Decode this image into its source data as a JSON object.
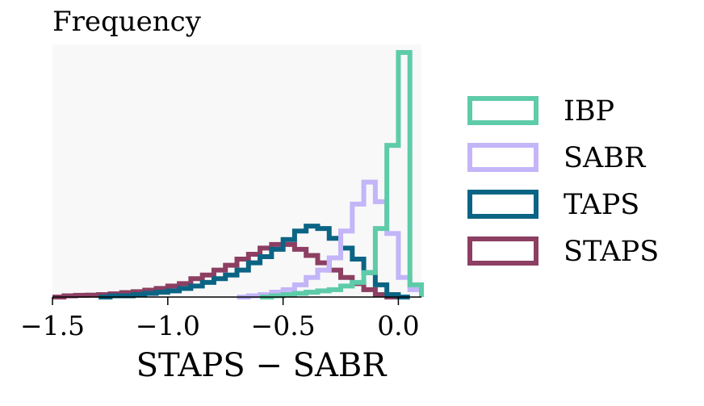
{
  "chart_data": {
    "type": "histogram",
    "ylabel": "Frequency",
    "xlabel": "STAPS − SABR",
    "xlim": [
      -1.5,
      0.1
    ],
    "ylim": [
      0,
      1.0
    ],
    "xticks": [
      "−1.5",
      "−1.0",
      "−0.5",
      "0.0"
    ],
    "xtick_values": [
      -1.5,
      -1.0,
      -0.5,
      0.0
    ],
    "grid": false,
    "legend_position": "right",
    "bin_width": 0.05,
    "series": [
      {
        "name": "IBP",
        "color": "#5ecba9",
        "bins": [
          [
            -0.6,
            0.0
          ],
          [
            -0.55,
            0.005
          ],
          [
            -0.5,
            0.01
          ],
          [
            -0.45,
            0.015
          ],
          [
            -0.4,
            0.02
          ],
          [
            -0.35,
            0.025
          ],
          [
            -0.3,
            0.03
          ],
          [
            -0.25,
            0.045
          ],
          [
            -0.2,
            0.06
          ],
          [
            -0.15,
            0.1
          ],
          [
            -0.1,
            0.28
          ],
          [
            -0.05,
            0.62
          ],
          [
            0.0,
            1.0
          ],
          [
            0.05,
            0.05
          ],
          [
            0.1,
            0.0
          ]
        ]
      },
      {
        "name": "SABR",
        "color": "#c3b5f8",
        "bins": [
          [
            -0.7,
            0.0
          ],
          [
            -0.65,
            0.005
          ],
          [
            -0.6,
            0.01
          ],
          [
            -0.55,
            0.02
          ],
          [
            -0.5,
            0.03
          ],
          [
            -0.45,
            0.05
          ],
          [
            -0.4,
            0.08
          ],
          [
            -0.35,
            0.11
          ],
          [
            -0.3,
            0.16
          ],
          [
            -0.25,
            0.27
          ],
          [
            -0.2,
            0.38
          ],
          [
            -0.15,
            0.47
          ],
          [
            -0.1,
            0.39
          ],
          [
            -0.05,
            0.26
          ],
          [
            0.0,
            0.08
          ],
          [
            0.05,
            0.03
          ],
          [
            0.1,
            0.0
          ]
        ]
      },
      {
        "name": "TAPS",
        "color": "#0b6484",
        "bins": [
          [
            -1.3,
            0.0
          ],
          [
            -1.25,
            0.005
          ],
          [
            -1.2,
            0.005
          ],
          [
            -1.15,
            0.01
          ],
          [
            -1.1,
            0.015
          ],
          [
            -1.05,
            0.02
          ],
          [
            -1.0,
            0.025
          ],
          [
            -0.95,
            0.035
          ],
          [
            -0.9,
            0.045
          ],
          [
            -0.85,
            0.06
          ],
          [
            -0.8,
            0.075
          ],
          [
            -0.75,
            0.09
          ],
          [
            -0.7,
            0.11
          ],
          [
            -0.65,
            0.14
          ],
          [
            -0.6,
            0.165
          ],
          [
            -0.55,
            0.195
          ],
          [
            -0.5,
            0.235
          ],
          [
            -0.45,
            0.27
          ],
          [
            -0.4,
            0.29
          ],
          [
            -0.35,
            0.28
          ],
          [
            -0.3,
            0.24
          ],
          [
            -0.25,
            0.2
          ],
          [
            -0.2,
            0.155
          ],
          [
            -0.15,
            0.1
          ],
          [
            -0.1,
            0.05
          ],
          [
            -0.05,
            0.01
          ],
          [
            0.0,
            0.0
          ]
        ]
      },
      {
        "name": "STAPS",
        "color": "#8c3f62",
        "bins": [
          [
            -1.5,
            0.0
          ],
          [
            -1.45,
            0.005
          ],
          [
            -1.4,
            0.007
          ],
          [
            -1.35,
            0.008
          ],
          [
            -1.3,
            0.01
          ],
          [
            -1.25,
            0.013
          ],
          [
            -1.2,
            0.018
          ],
          [
            -1.15,
            0.022
          ],
          [
            -1.1,
            0.028
          ],
          [
            -1.05,
            0.035
          ],
          [
            -1.0,
            0.045
          ],
          [
            -0.95,
            0.055
          ],
          [
            -0.9,
            0.075
          ],
          [
            -0.85,
            0.09
          ],
          [
            -0.8,
            0.11
          ],
          [
            -0.75,
            0.13
          ],
          [
            -0.7,
            0.155
          ],
          [
            -0.65,
            0.175
          ],
          [
            -0.6,
            0.2
          ],
          [
            -0.55,
            0.215
          ],
          [
            -0.5,
            0.215
          ],
          [
            -0.45,
            0.195
          ],
          [
            -0.4,
            0.17
          ],
          [
            -0.35,
            0.14
          ],
          [
            -0.3,
            0.11
          ],
          [
            -0.25,
            0.08
          ],
          [
            -0.2,
            0.055
          ],
          [
            -0.15,
            0.03
          ],
          [
            -0.1,
            0.01
          ],
          [
            -0.05,
            0.0
          ]
        ]
      }
    ]
  }
}
